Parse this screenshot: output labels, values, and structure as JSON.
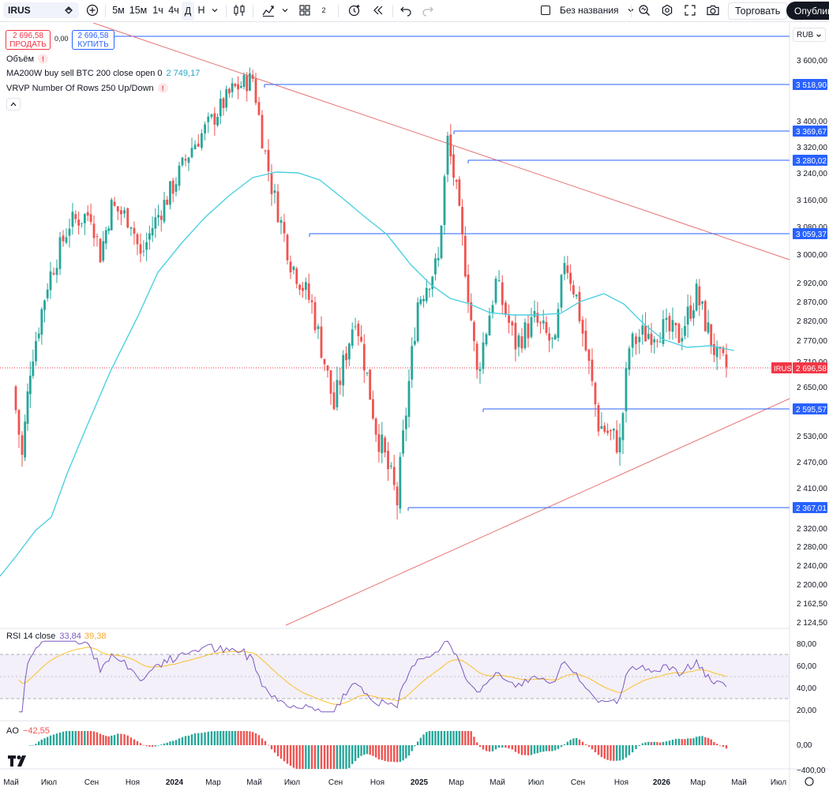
{
  "toolbar": {
    "symbol": "IRUS",
    "timeframes": [
      "5м",
      "15м",
      "1ч",
      "4ч",
      "Д",
      "Н"
    ],
    "active_timeframe": "Д",
    "layouts_count": "2",
    "layout_name": "Без названия",
    "trade_label": "Торговать",
    "publish_label": "Опублико"
  },
  "orders": {
    "sell_price": "2 696,58",
    "sell_label": "ПРОДАТЬ",
    "spread": "0,00",
    "buy_price": "2 696,58",
    "buy_label": "КУПИТЬ"
  },
  "indicators": {
    "volume_label": "Объём",
    "ma_label": "MA200W buy sell BTC 200 close open 0",
    "ma_value": "2 749,17",
    "vrvp_label": "VRVP Number Of Rows 250 Up/Down",
    "rsi_label": "RSI 14 close",
    "rsi_value": "33,84",
    "rsi_ma_value": "39,38",
    "ao_label": "AO",
    "ao_value": "−42,55"
  },
  "currency": "RUB",
  "price_axis": [
    "3 600,00",
    "3 400,00",
    "3 320,00",
    "3 240,00",
    "3 160,00",
    "3 080,00",
    "3 000,00",
    "2 920,00",
    "2 870,00",
    "2 820,00",
    "2 770,00",
    "2 710,00",
    "2 650,00",
    "2 530,00",
    "2 470,00",
    "2 410,00",
    "2 320,00",
    "2 280,00",
    "2 240,00",
    "2 200,00",
    "2 162,50",
    "2 124,50"
  ],
  "level_labels": [
    "3 518,90",
    "3 369,67",
    "3 280,02",
    "3 059,37",
    "2 595,57",
    "2 367,01"
  ],
  "current_price": {
    "symbol": "IRUS",
    "value": "2 696,58"
  },
  "rsi_axis": [
    "80,00",
    "60,00",
    "40,00",
    "20,00"
  ],
  "ao_axis": [
    "0,00",
    "−400,00"
  ],
  "time_axis": [
    "Май",
    "Июл",
    "Сен",
    "Ноя",
    "2024",
    "Мар",
    "Май",
    "Июл",
    "Сен",
    "Ноя",
    "2025",
    "Мар",
    "Май",
    "Июл",
    "Сен",
    "Ноя",
    "2026",
    "Мар",
    "Май",
    "Июл"
  ],
  "colors": {
    "up": "#26a69a",
    "down": "#ef5350",
    "ma": "#4dd0e1",
    "level": "#2962ff",
    "trendline": "#e57373",
    "rsi": "#7e57c2",
    "rsi_ma": "#fbc02d",
    "price_tag": "#f23645"
  },
  "chart_data": {
    "type": "candlestick",
    "symbol": "IRUS",
    "currency": "RUB",
    "levels": [
      3518.9,
      3369.67,
      3280.02,
      3059.37,
      2595.57,
      2367.01
    ],
    "current_price": 2696.58,
    "ylim": [
      2110,
      3660
    ],
    "anchors": [
      [
        "2023-05",
        2650
      ],
      [
        "2023-05",
        2480
      ],
      [
        "2023-06",
        2700
      ],
      [
        "2023-07",
        2920
      ],
      [
        "2023-08",
        3090
      ],
      [
        "2023-09",
        3120
      ],
      [
        "2023-09",
        3000
      ],
      [
        "2023-10",
        3140
      ],
      [
        "2023-11",
        3100
      ],
      [
        "2023-11",
        2990
      ],
      [
        "2023-12",
        3080
      ],
      [
        "2024-01",
        3200
      ],
      [
        "2024-02",
        3320
      ],
      [
        "2024-03",
        3400
      ],
      [
        "2024-04",
        3500
      ],
      [
        "2024-05",
        3540
      ],
      [
        "2024-05",
        3350
      ],
      [
        "2024-06",
        3200
      ],
      [
        "2024-07",
        2980
      ],
      [
        "2024-08",
        2860
      ],
      [
        "2024-09",
        2600
      ],
      [
        "2024-10",
        2840
      ],
      [
        "2024-11",
        2550
      ],
      [
        "2024-12",
        2380
      ],
      [
        "2025-01",
        2870
      ],
      [
        "2025-02",
        2980
      ],
      [
        "2025-02",
        3340
      ],
      [
        "2025-03",
        3180
      ],
      [
        "2025-04",
        2680
      ],
      [
        "2025-05",
        2920
      ],
      [
        "2025-06",
        2760
      ],
      [
        "2025-07",
        2820
      ],
      [
        "2025-08",
        2750
      ],
      [
        "2025-08",
        2990
      ],
      [
        "2025-09",
        2880
      ],
      [
        "2025-10",
        2560
      ],
      [
        "2025-11",
        2510
      ],
      [
        "2025-11",
        2750
      ],
      [
        "2025-12",
        2780
      ],
      [
        "2026-01",
        2800
      ],
      [
        "2026-02",
        2780
      ],
      [
        "2026-03",
        2890
      ],
      [
        "2026-04",
        2720
      ],
      [
        "2026-04",
        2697
      ]
    ]
  }
}
